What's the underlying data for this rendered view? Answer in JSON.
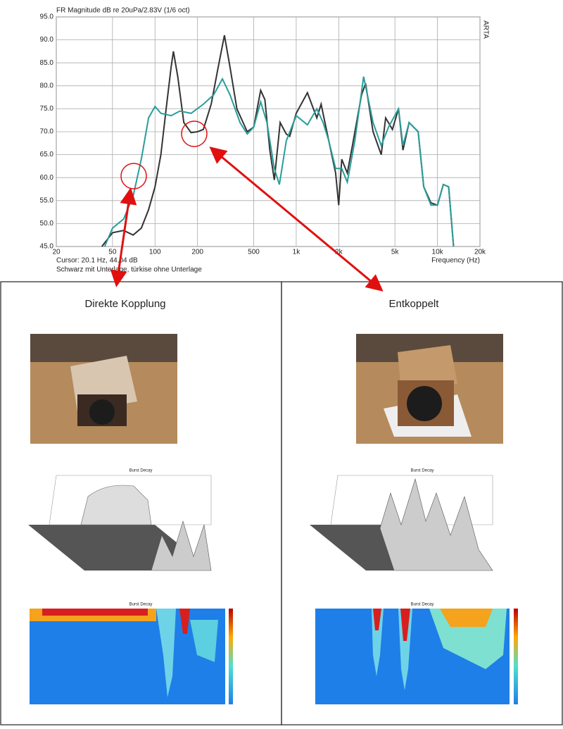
{
  "chart_data": {
    "type": "line",
    "title": "FR Magnitude dB re 20uPa/2.83V (1/6 oct)",
    "side_label": "ARTA",
    "x_label": "Frequency (Hz)",
    "cursor": "Cursor: 20.1 Hz, 44.04 dB",
    "note": "Schwarz mit Unterlage, türkise ohne Unterlage",
    "log_x": true,
    "grid": true,
    "xlim": [
      20,
      20000
    ],
    "xticks": [
      20,
      50,
      100,
      200,
      500,
      {
        "value": 1000,
        "label": "1k"
      },
      {
        "value": 2000,
        "label": "2k"
      },
      {
        "value": 5000,
        "label": "5k"
      },
      {
        "value": 10000,
        "label": "10k"
      },
      {
        "value": 20000,
        "label": "20k"
      }
    ],
    "ylim": [
      45,
      95
    ],
    "yticks": [
      {
        "value": 45,
        "label": "45.0"
      },
      {
        "value": 50,
        "label": "50.0"
      },
      {
        "value": 55,
        "label": "55.0"
      },
      {
        "value": 60,
        "label": "60.0"
      },
      {
        "value": 65,
        "label": "65.0"
      },
      {
        "value": 70,
        "label": "70.0"
      },
      {
        "value": 75,
        "label": "75.0"
      },
      {
        "value": 80,
        "label": "80.0"
      },
      {
        "value": 85,
        "label": "85.0"
      },
      {
        "value": 90,
        "label": "90.0"
      },
      {
        "value": 95,
        "label": "95.0"
      }
    ],
    "series": [
      {
        "color": "#333333",
        "x": [
          42,
          50,
          60,
          70,
          80,
          90,
          100,
          110,
          120,
          130,
          135,
          145,
          160,
          180,
          200,
          220,
          250,
          280,
          310,
          340,
          380,
          450,
          500,
          560,
          600,
          650,
          700,
          770,
          850,
          900,
          1000,
          1200,
          1400,
          1500,
          1700,
          1900,
          2000,
          2100,
          2300,
          2500,
          2900,
          3100,
          3500,
          4000,
          4300,
          4800,
          5300,
          5700,
          6300,
          7300,
          8000,
          9000,
          10000,
          11000,
          12000,
          13000
        ],
        "values": [
          45,
          48,
          48.5,
          47.5,
          49,
          53,
          58,
          65,
          75,
          84,
          87.5,
          82,
          72,
          69.8,
          70,
          70.5,
          76,
          84,
          91,
          84,
          75,
          70,
          71,
          79,
          77,
          66,
          59.5,
          72,
          69.5,
          69,
          74,
          78.5,
          73,
          76,
          68,
          61,
          54,
          64,
          61,
          67,
          78,
          80.5,
          70,
          65,
          73,
          70.5,
          75,
          66,
          72,
          70,
          58,
          54.5,
          54,
          58.5,
          58,
          45
        ]
      },
      {
        "color": "#2a9d9a",
        "x": [
          44,
          50,
          60,
          70,
          80,
          90,
          100,
          110,
          130,
          150,
          180,
          220,
          260,
          300,
          340,
          400,
          450,
          500,
          560,
          620,
          700,
          760,
          850,
          1000,
          1200,
          1400,
          1550,
          1700,
          1900,
          2100,
          2300,
          2600,
          3000,
          3500,
          4000,
          4500,
          5300,
          5700,
          6300,
          7300,
          8000,
          9000,
          10000,
          11000,
          12000,
          13000
        ],
        "values": [
          45,
          49,
          51,
          56,
          64,
          73,
          75.5,
          74,
          73.5,
          74.5,
          74,
          76,
          78,
          81.5,
          78,
          72,
          69.5,
          71,
          76.5,
          72,
          62,
          58.5,
          68,
          73.5,
          71.5,
          75,
          72,
          68,
          62,
          62,
          59,
          68,
          82,
          72,
          67,
          71,
          75,
          67,
          72,
          70,
          58,
          54,
          54,
          58.5,
          58,
          45
        ]
      }
    ]
  },
  "panels": [
    {
      "title": "Direkte Kopplung",
      "plot_title": "Burst Decay"
    },
    {
      "title": "Entkoppelt",
      "plot_title": "Burst Decay"
    }
  ]
}
